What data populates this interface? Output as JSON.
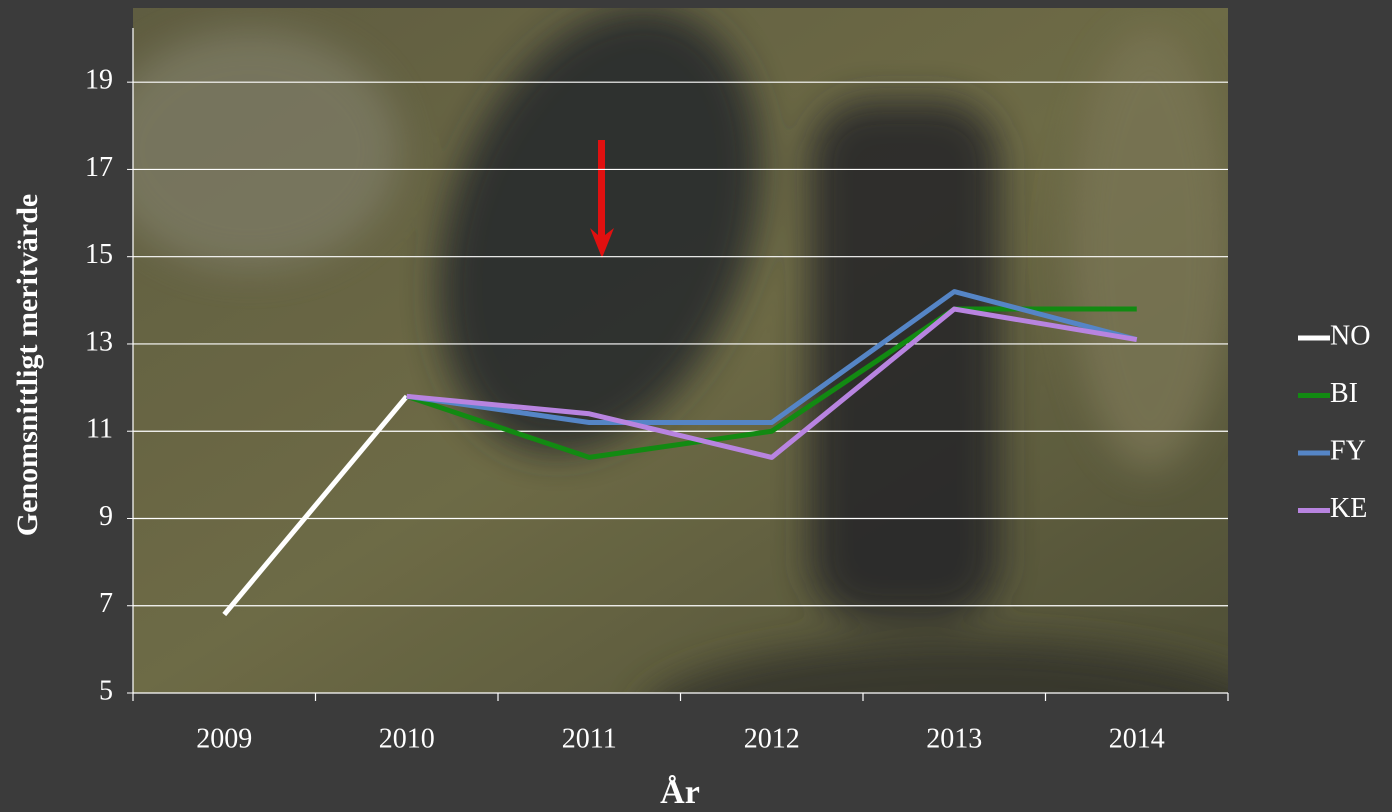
{
  "chart_data": {
    "type": "line",
    "categories": [
      "2009",
      "2010",
      "2011",
      "2012",
      "2013",
      "2014"
    ],
    "series": [
      {
        "name": "NO",
        "color": "#ffffff",
        "values": [
          6.8,
          11.8,
          null,
          null,
          null,
          null
        ]
      },
      {
        "name": "BI",
        "color": "#128a12",
        "values": [
          null,
          11.8,
          10.4,
          11.0,
          13.8,
          13.8
        ]
      },
      {
        "name": "FY",
        "color": "#5585c6",
        "values": [
          null,
          11.8,
          11.2,
          11.2,
          14.2,
          13.1
        ]
      },
      {
        "name": "KE",
        "color": "#b884e0",
        "values": [
          null,
          11.8,
          11.4,
          10.4,
          13.8,
          13.1
        ]
      }
    ],
    "x_label": "År",
    "y_label": "Genomsnittligt meritvärde",
    "ylim": [
      5,
      20.7
    ],
    "yticks": [
      5,
      7,
      9,
      11,
      13,
      15,
      17,
      19
    ],
    "grid": true,
    "legend": "right"
  }
}
